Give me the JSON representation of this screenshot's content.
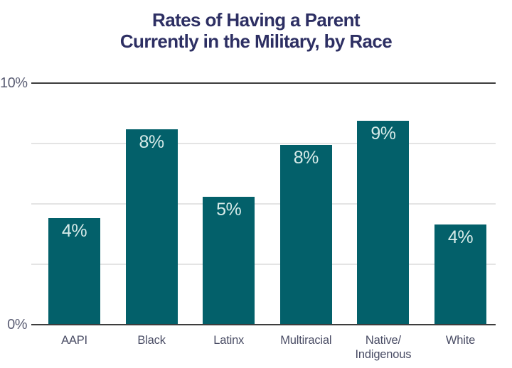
{
  "title": {
    "text": "Rates of Having a Parent Currently in the Military, by Race"
  },
  "chart_data": {
    "type": "bar",
    "title": "Rates of Having a Parent Currently in the Military, by Race",
    "title_lines": [
      "Rates of Having a Parent",
      "Currently in the Military, by Race"
    ],
    "categories": [
      "AAPI",
      "Black",
      "Latinx",
      "Multiracial",
      "Native/Indigenous",
      "White"
    ],
    "category_display_lines": [
      [
        "AAPI"
      ],
      [
        "Black"
      ],
      [
        "Latinx"
      ],
      [
        "Multiracial"
      ],
      [
        "Native/",
        "Indigenous"
      ],
      [
        "White"
      ]
    ],
    "values": [
      4,
      8,
      5,
      8,
      9,
      4
    ],
    "value_labels": [
      "4%",
      "8%",
      "5%",
      "8%",
      "9%",
      "4%"
    ],
    "depicted_heights_pct": [
      4.4,
      8.1,
      5.3,
      7.45,
      8.45,
      4.15
    ],
    "xlabel": "",
    "ylabel": "",
    "ylim": [
      0,
      10
    ],
    "yticks": [
      {
        "value": 0,
        "label": "0%",
        "strong": true
      },
      {
        "value": 2.5,
        "label": "",
        "strong": false
      },
      {
        "value": 5,
        "label": "",
        "strong": false
      },
      {
        "value": 7.5,
        "label": "",
        "strong": false
      },
      {
        "value": 10,
        "label": "10%",
        "strong": true
      }
    ],
    "grid": "horizontal-light-between-strong-top-and-bottom",
    "legend": "none",
    "colors": {
      "title_color": "#2d2f63",
      "bar_fill": "#03606a",
      "bar_label_color": "#d6eae8",
      "tick_label_color": "#5c5f75",
      "category_label_color": "#4a4d65",
      "strong_line_color": "#3d3d3d",
      "light_line_color": "#e4e4e4",
      "page_bg": "#ffffff"
    }
  }
}
